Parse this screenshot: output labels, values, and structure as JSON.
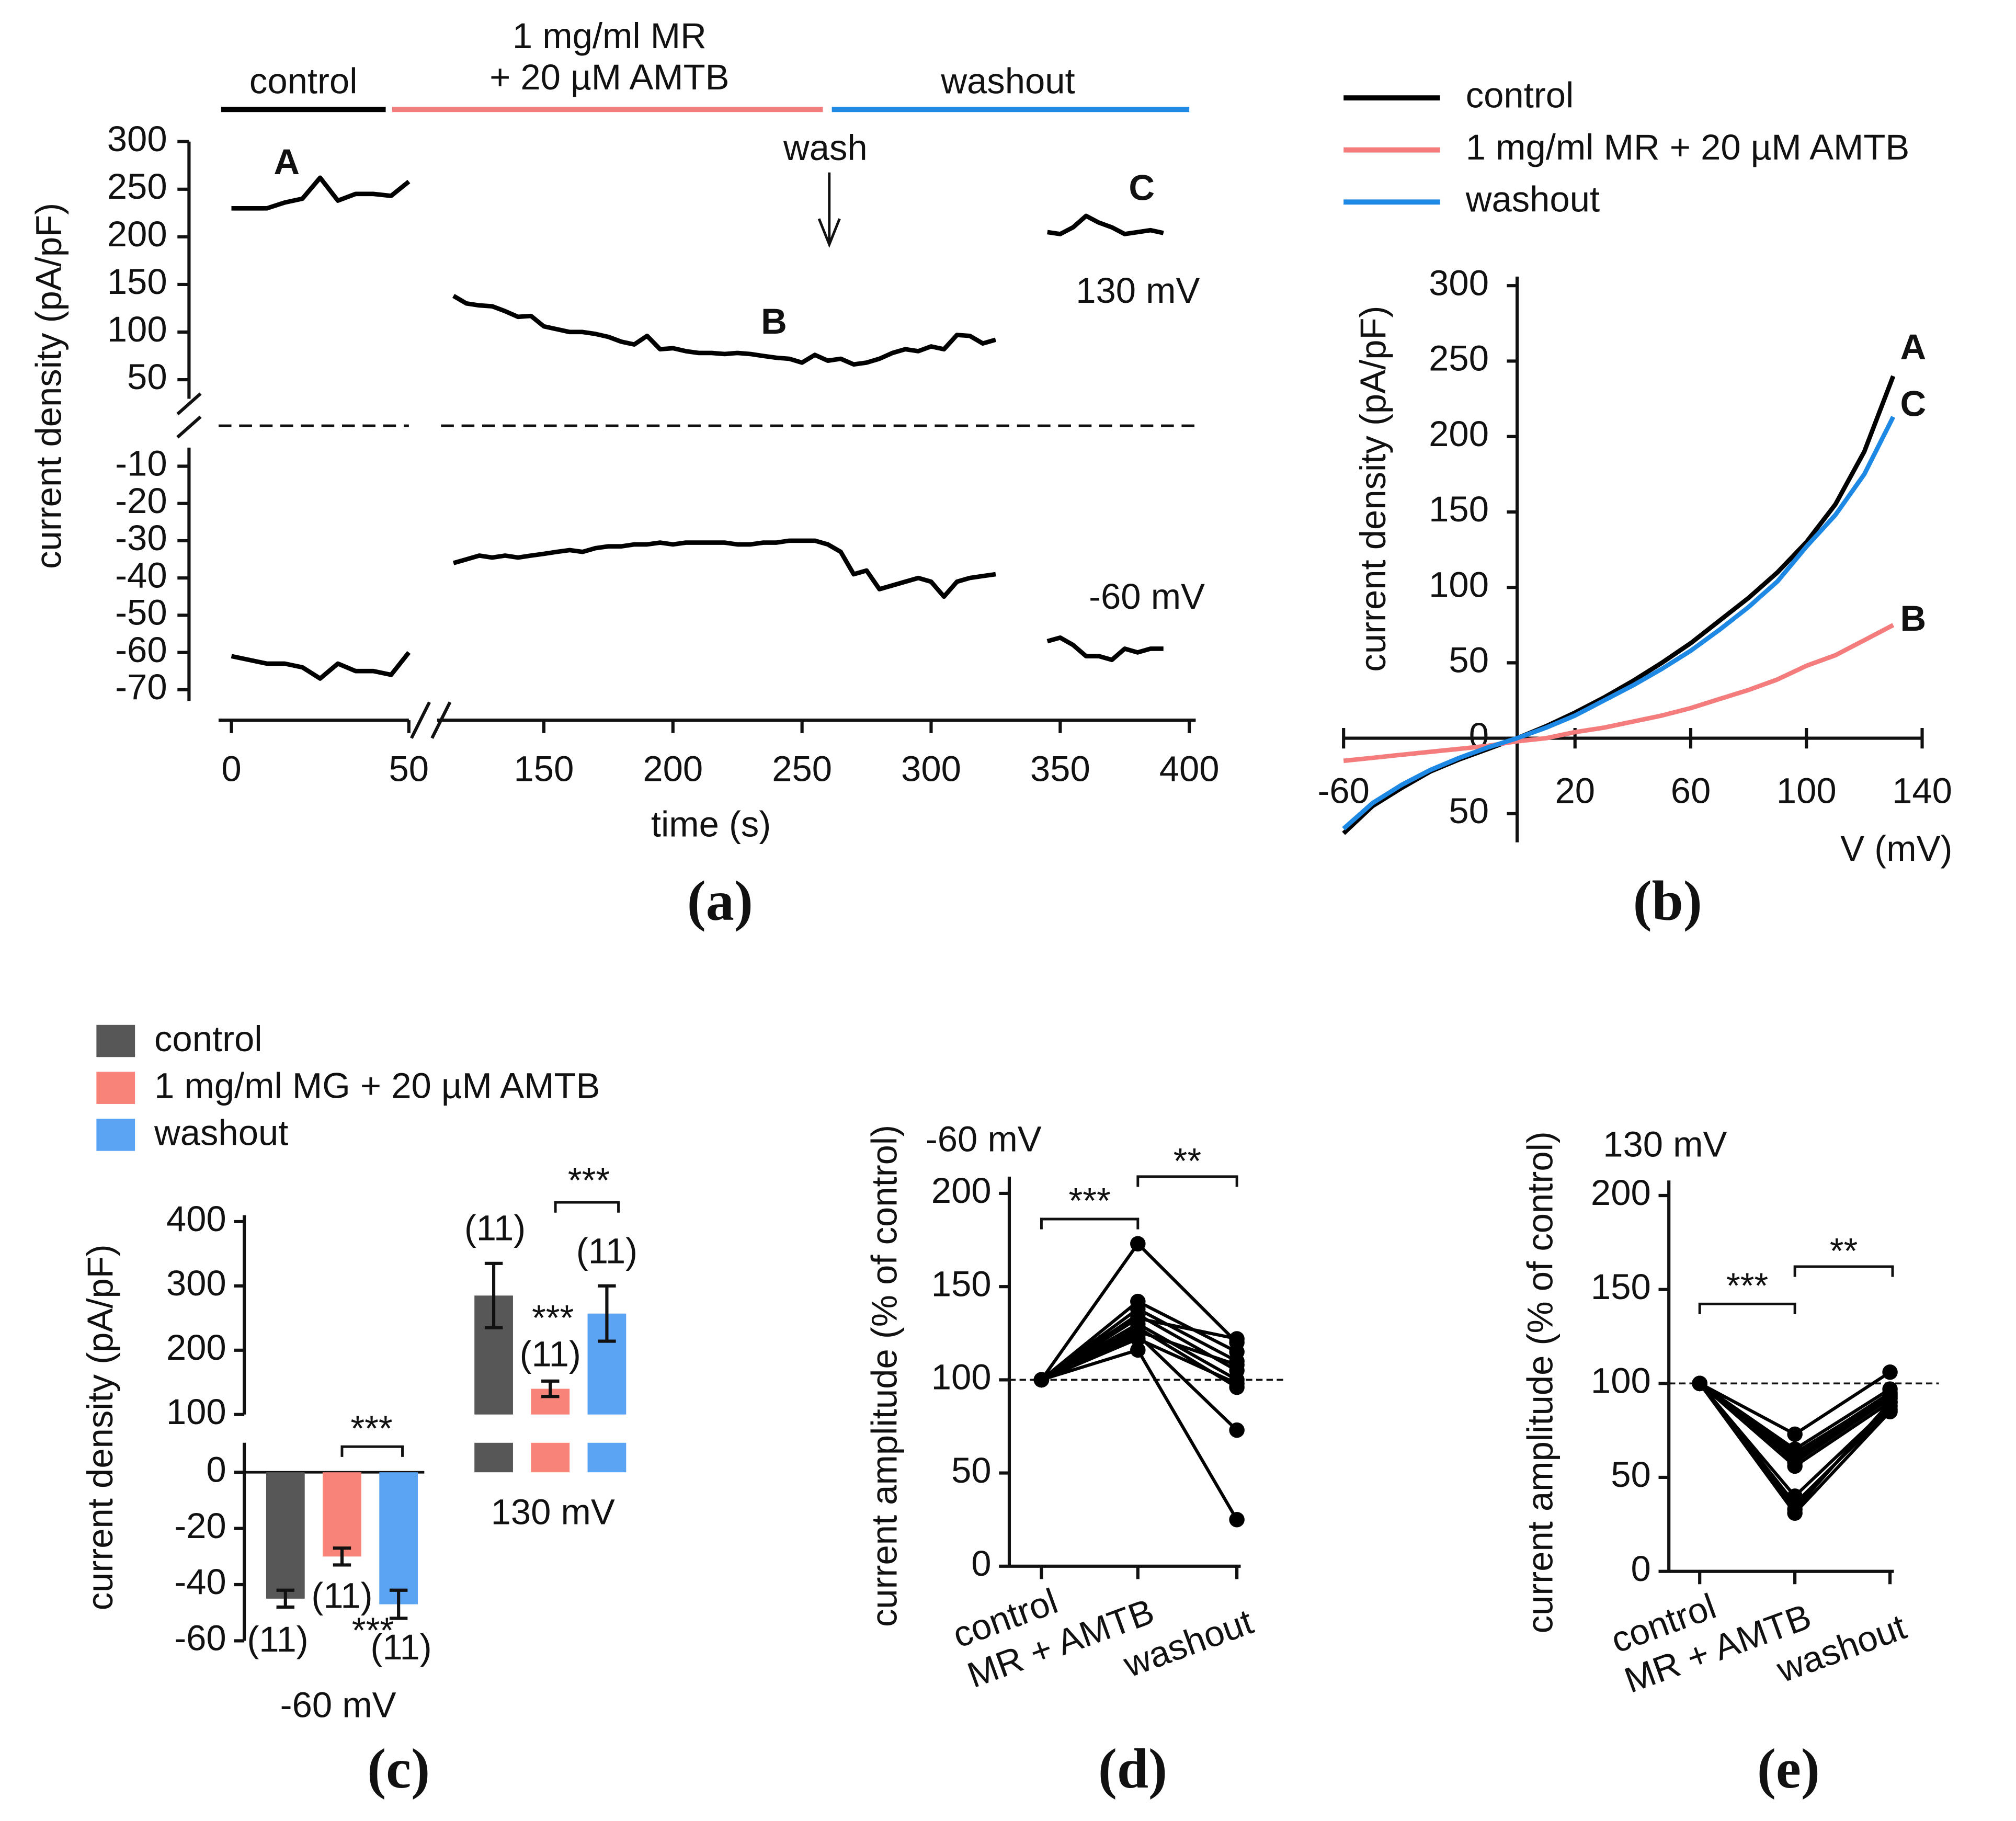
{
  "chart_data": [
    {
      "type": "line",
      "panel": "(a)",
      "y_label": "current density (pA/pF)",
      "x_label": "time (s)",
      "phases": [
        {
          "text": [
            "control"
          ],
          "color": "#000000"
        },
        {
          "text": [
            "1 mg/ml MR",
            "+ 20 µM AMTB"
          ],
          "color": "#f47c7c"
        },
        {
          "text": [
            "washout"
          ],
          "color": "#1e88e5"
        }
      ],
      "annotations": [
        {
          "text": "A",
          "color": "#000000"
        },
        {
          "text": "B",
          "color": "#f47c7c"
        },
        {
          "text": "C",
          "color": "#1e88e5"
        },
        {
          "text": "130 mV",
          "color": "#111111"
        },
        {
          "text": "-60 mV",
          "color": "#111111"
        },
        {
          "text": "wash",
          "color": "#111111"
        }
      ],
      "xlim": [
        0,
        400
      ],
      "xticks": [
        0,
        50,
        150,
        200,
        250,
        300,
        350,
        400
      ],
      "ylim": [
        30,
        300
      ],
      "yticks": [
        50,
        100,
        150,
        200,
        250,
        300
      ],
      "y2lim": [
        -73,
        -5
      ],
      "y2ticks": [
        -10,
        -20,
        -30,
        -40,
        -50,
        -60,
        -70
      ],
      "series": [
        {
          "color": "#000000",
          "x": [
            0,
            5,
            10,
            15,
            20,
            25,
            30,
            35,
            40,
            45,
            50
          ],
          "values": [
            230,
            230,
            230,
            236,
            240,
            262,
            238,
            245,
            245,
            243,
            258
          ]
        },
        {
          "color": "#000000",
          "x": [
            115,
            120,
            125,
            130,
            135,
            140,
            145,
            150,
            155,
            160,
            165,
            170,
            175,
            180,
            185,
            190,
            195,
            200,
            205,
            210,
            215,
            220,
            225,
            230,
            235,
            240,
            245,
            250,
            255,
            260,
            265,
            270,
            275,
            280,
            285,
            290,
            295,
            300,
            305,
            310,
            315,
            320,
            325
          ],
          "values": [
            138,
            130,
            128,
            127,
            122,
            116,
            117,
            106,
            103,
            100,
            100,
            98,
            95,
            90,
            87,
            96,
            82,
            83,
            80,
            78,
            78,
            77,
            78,
            77,
            75,
            73,
            72,
            68,
            76,
            70,
            72,
            66,
            68,
            72,
            78,
            82,
            80,
            85,
            82,
            97,
            96,
            88,
            92
          ]
        },
        {
          "color": "#000000",
          "x": [
            345,
            350,
            355,
            360,
            365,
            370,
            375,
            380,
            385,
            390
          ],
          "values": [
            205,
            203,
            210,
            222,
            215,
            210,
            203,
            205,
            207,
            204
          ]
        },
        {
          "color": "#000000",
          "axis": "y2",
          "x": [
            0,
            5,
            10,
            15,
            20,
            25,
            30,
            35,
            40,
            45,
            50
          ],
          "values": [
            -61,
            -62,
            -63,
            -63,
            -64,
            -67,
            -63,
            -65,
            -65,
            -66,
            -60
          ]
        },
        {
          "color": "#000000",
          "axis": "y2",
          "x": [
            115,
            120,
            125,
            130,
            135,
            140,
            145,
            150,
            155,
            160,
            165,
            170,
            175,
            180,
            185,
            190,
            195,
            200,
            205,
            210,
            215,
            220,
            225,
            230,
            235,
            240,
            245,
            250,
            255,
            260,
            265,
            270,
            275,
            280,
            285,
            290,
            295,
            300,
            305,
            310,
            315,
            320,
            325
          ],
          "values": [
            -36,
            -35,
            -34,
            -34.5,
            -34,
            -34.5,
            -34,
            -33.5,
            -33,
            -32.5,
            -33,
            -32,
            -31.5,
            -31.5,
            -31,
            -31,
            -30.5,
            -31,
            -30.5,
            -30.5,
            -30.5,
            -30.5,
            -31,
            -31,
            -30.5,
            -30.5,
            -30,
            -30,
            -30,
            -31,
            -33,
            -39,
            -38,
            -43,
            -42,
            -41,
            -40,
            -41,
            -45,
            -41,
            -40,
            -39.5,
            -39
          ]
        },
        {
          "color": "#000000",
          "axis": "y2",
          "x": [
            345,
            350,
            355,
            360,
            365,
            370,
            375,
            380,
            385,
            390
          ],
          "values": [
            -57,
            -56,
            -58,
            -61,
            -61,
            -62,
            -59,
            -60,
            -59,
            -59
          ]
        }
      ]
    },
    {
      "type": "line",
      "panel": "(b)",
      "y_label": "current density (pA/pF)",
      "x_label": "V (mV)",
      "xlim": [
        -60,
        140
      ],
      "xticks": [
        -60,
        20,
        60,
        100,
        140
      ],
      "ylim": [
        -69,
        306
      ],
      "yticks": [
        {
          "value": -50,
          "label": "50"
        },
        0,
        50,
        100,
        150,
        200,
        250,
        300
      ],
      "annotations": [
        {
          "text": "A",
          "color": "#000000"
        },
        {
          "text": "C",
          "color": "#1e88e5"
        },
        {
          "text": "B",
          "color": "#f47c7c"
        }
      ],
      "series": [
        {
          "name": "control",
          "color": "#000000",
          "x": [
            -60,
            -50,
            -40,
            -30,
            -20,
            -10,
            0,
            10,
            20,
            30,
            40,
            50,
            60,
            70,
            80,
            90,
            100,
            110,
            120,
            130
          ],
          "values": [
            -63,
            -45,
            -33,
            -22,
            -14,
            -7,
            0,
            8,
            17,
            27,
            38,
            50,
            63,
            78,
            93,
            110,
            130,
            155,
            190,
            240
          ]
        },
        {
          "name": "1 mg/ml MR + 20 µM AMTB",
          "color": "#f47c7c",
          "x": [
            -60,
            -50,
            -40,
            -30,
            -20,
            -10,
            0,
            10,
            20,
            30,
            40,
            50,
            60,
            70,
            80,
            90,
            100,
            110,
            120,
            130
          ],
          "values": [
            -15,
            -13,
            -11,
            -9,
            -7,
            -5,
            -2,
            0,
            4,
            7,
            11,
            15,
            20,
            26,
            32,
            39,
            48,
            55,
            65,
            75
          ]
        },
        {
          "name": "washout",
          "color": "#1e88e5",
          "x": [
            -60,
            -50,
            -40,
            -30,
            -20,
            -10,
            0,
            10,
            20,
            30,
            40,
            50,
            60,
            70,
            80,
            90,
            100,
            110,
            120,
            130
          ],
          "values": [
            -60,
            -43,
            -31,
            -21,
            -13,
            -6,
            0,
            7,
            15,
            25,
            35,
            46,
            58,
            72,
            87,
            104,
            127,
            148,
            175,
            213
          ]
        }
      ]
    },
    {
      "type": "bar",
      "panel": "(c)",
      "y_label": "current density (pA/pF)",
      "categories": [
        "-60 mV",
        "130 mV"
      ],
      "ylim": [
        -60,
        10.5
      ],
      "yticks": [
        0,
        -20,
        -40,
        -60
      ],
      "y2lim": [
        100,
        400
      ],
      "y2ticks": [
        100,
        200,
        300,
        400
      ],
      "annotations": [
        "***",
        "***",
        "***",
        "***"
      ],
      "series": [
        {
          "name": "control",
          "color": "#575757",
          "values": [
            -45,
            285
          ],
          "error": [
            3,
            50
          ],
          "n_labels": [
            "(11)",
            "(11)"
          ]
        },
        {
          "name": "1 mg/ml MG + 20 µM AMTB",
          "color": "#f88379",
          "values": [
            -30,
            140
          ],
          "error": [
            3,
            12
          ],
          "n_labels": [
            "(11)",
            "(11)"
          ]
        },
        {
          "name": "washout",
          "color": "#5ba4f4",
          "values": [
            -47,
            257
          ],
          "error": [
            5,
            43
          ],
          "n_labels": [
            "(11)",
            "(11)"
          ]
        }
      ]
    },
    {
      "type": "line",
      "panel": "(d)",
      "y_label": "current amplitude (% of control)",
      "categories": [
        "control",
        "MR + AMTB",
        "washout"
      ],
      "reference": 100,
      "ylim": [
        0,
        209
      ],
      "yticks": [
        0,
        50,
        100,
        150,
        200
      ],
      "annotations": [
        "-60 mV",
        "***",
        "**"
      ],
      "series": [
        {
          "color": "#000000",
          "values": [
            100,
            173,
            120
          ]
        },
        {
          "color": "#000000",
          "values": [
            100,
            142,
            115
          ]
        },
        {
          "color": "#000000",
          "values": [
            100,
            138,
            110
          ]
        },
        {
          "color": "#000000",
          "values": [
            100,
            135,
            105
          ]
        },
        {
          "color": "#000000",
          "values": [
            100,
            133,
            122
          ]
        },
        {
          "color": "#000000",
          "values": [
            100,
            130,
            100
          ]
        },
        {
          "color": "#000000",
          "values": [
            100,
            128,
            96
          ]
        },
        {
          "color": "#000000",
          "values": [
            100,
            126,
            108
          ]
        },
        {
          "color": "#000000",
          "values": [
            100,
            124,
            73
          ]
        },
        {
          "color": "#000000",
          "values": [
            100,
            122,
            98
          ]
        },
        {
          "color": "#000000",
          "values": [
            100,
            116,
            25
          ]
        }
      ]
    },
    {
      "type": "line",
      "panel": "(e)",
      "y_label": "current amplitude (% of control)",
      "categories": [
        "control",
        "MR + AMTB",
        "washout"
      ],
      "reference": 100,
      "ylim": [
        0,
        208
      ],
      "yticks": [
        0,
        50,
        100,
        150,
        200
      ],
      "annotations": [
        "130 mV",
        "***",
        "**"
      ],
      "series": [
        {
          "color": "#000000",
          "values": [
            100,
            73,
            106
          ]
        },
        {
          "color": "#000000",
          "values": [
            100,
            65,
            97
          ]
        },
        {
          "color": "#000000",
          "values": [
            100,
            62,
            95
          ]
        },
        {
          "color": "#000000",
          "values": [
            100,
            60,
            93
          ]
        },
        {
          "color": "#000000",
          "values": [
            100,
            58,
            92
          ]
        },
        {
          "color": "#000000",
          "values": [
            100,
            56,
            90
          ]
        },
        {
          "color": "#000000",
          "values": [
            100,
            40,
            88
          ]
        },
        {
          "color": "#000000",
          "values": [
            100,
            36,
            86
          ]
        },
        {
          "color": "#000000",
          "values": [
            100,
            33,
            90
          ]
        },
        {
          "color": "#000000",
          "values": [
            100,
            31,
            85
          ]
        },
        {
          "color": "#000000",
          "values": [
            100,
            63,
            94
          ]
        }
      ]
    }
  ]
}
